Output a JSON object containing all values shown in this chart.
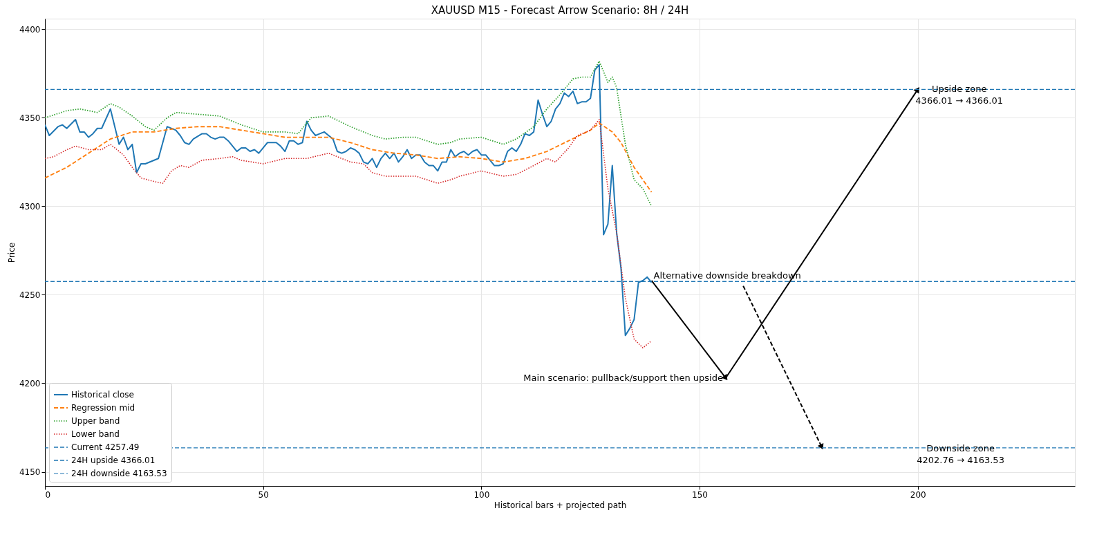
{
  "chart_data": {
    "type": "line",
    "title": "XAUUSD M15 - Forecast Arrow Scenario: 8H / 24H",
    "xlabel": "Historical bars + projected path",
    "ylabel": "Price",
    "xlim": [
      0,
      236
    ],
    "ylim": [
      4142,
      4406
    ],
    "xticks": [
      0,
      50,
      100,
      150,
      200
    ],
    "yticks": [
      4150,
      4200,
      4250,
      4300,
      4350,
      4400
    ],
    "grid": true,
    "legend": "bottom left",
    "series": [
      {
        "name": "Historical close",
        "color": "#1f77b4",
        "line_style": "solid",
        "x": [
          0,
          1,
          3,
          4,
          5,
          7,
          8,
          9,
          10,
          11,
          12,
          13,
          15,
          17,
          18,
          19,
          20,
          21,
          22,
          23,
          26,
          28,
          30,
          31,
          32,
          33,
          34,
          36,
          37,
          38,
          39,
          40,
          41,
          42,
          43,
          44,
          45,
          46,
          47,
          48,
          49,
          50,
          51,
          52,
          53,
          54,
          55,
          56,
          57,
          58,
          59,
          60,
          61,
          62,
          63,
          64,
          65,
          66,
          67,
          68,
          69,
          70,
          71,
          72,
          73,
          74,
          75,
          76,
          77,
          78,
          79,
          80,
          81,
          82,
          83,
          84,
          85,
          86,
          87,
          88,
          89,
          90,
          91,
          92,
          93,
          94,
          95,
          96,
          97,
          98,
          99,
          100,
          101,
          102,
          103,
          104,
          105,
          106,
          107,
          108,
          109,
          110,
          111,
          112,
          113,
          114,
          115,
          116,
          117,
          118,
          119,
          120,
          121,
          122,
          123,
          124,
          125,
          126,
          127,
          128,
          129,
          130,
          131,
          132,
          133,
          134,
          135,
          136,
          137,
          138,
          139
        ],
        "values": [
          4346,
          4340,
          4345,
          4346,
          4344,
          4349,
          4342,
          4342,
          4339,
          4341,
          4344,
          4344,
          4355,
          4335,
          4339,
          4332,
          4335,
          4319,
          4324,
          4324,
          4327,
          4345,
          4343,
          4340,
          4336,
          4335,
          4338,
          4341,
          4341,
          4339,
          4338,
          4339,
          4339,
          4337,
          4334,
          4331,
          4333,
          4333,
          4331,
          4332,
          4330,
          4333,
          4336,
          4336,
          4336,
          4334,
          4331,
          4337,
          4337,
          4335,
          4336,
          4348,
          4343,
          4340,
          4341,
          4342,
          4340,
          4338,
          4331,
          4330,
          4331,
          4333,
          4332,
          4330,
          4325,
          4324,
          4327,
          4322,
          4327,
          4330,
          4327,
          4330,
          4325,
          4328,
          4332,
          4327,
          4329,
          4329,
          4325,
          4323,
          4323,
          4320,
          4325,
          4325,
          4332,
          4328,
          4330,
          4331,
          4329,
          4331,
          4332,
          4329,
          4329,
          4326,
          4323,
          4323,
          4324,
          4331,
          4333,
          4331,
          4335,
          4341,
          4340,
          4342,
          4360,
          4352,
          4345,
          4348,
          4355,
          4358,
          4364,
          4362,
          4365,
          4358,
          4359,
          4359,
          4361,
          4377,
          4380,
          4284,
          4290,
          4323,
          4285,
          4265,
          4227,
          4231,
          4236,
          4257,
          4258,
          4260,
          4257
        ]
      },
      {
        "name": "Regression mid",
        "color": "#ff7f0e",
        "line_style": "dashed",
        "x": [
          0,
          5,
          10,
          15,
          20,
          25,
          30,
          35,
          40,
          45,
          50,
          55,
          60,
          65,
          70,
          75,
          80,
          85,
          90,
          95,
          100,
          105,
          110,
          115,
          120,
          125,
          127,
          130,
          132,
          135,
          139
        ],
        "values": [
          4316,
          4322,
          4330,
          4338,
          4342,
          4342,
          4344,
          4345,
          4345,
          4343,
          4341,
          4339,
          4339,
          4339,
          4336,
          4332,
          4330,
          4329,
          4327,
          4328,
          4327,
          4325,
          4327,
          4331,
          4337,
          4343,
          4347,
          4342,
          4336,
          4322,
          4308
        ]
      },
      {
        "name": "Upper band",
        "color": "#2ca02c",
        "line_style": "dotted",
        "x": [
          0,
          5,
          8,
          12,
          15,
          17,
          20,
          23,
          25,
          28,
          30,
          35,
          40,
          45,
          50,
          55,
          58,
          61,
          65,
          70,
          75,
          78,
          82,
          85,
          90,
          93,
          95,
          100,
          105,
          108,
          112,
          115,
          118,
          121,
          123,
          125,
          127,
          129,
          130,
          131,
          133,
          135,
          137,
          139
        ],
        "values": [
          4350,
          4354,
          4355,
          4353,
          4358,
          4356,
          4351,
          4345,
          4343,
          4350,
          4353,
          4352,
          4351,
          4346,
          4342,
          4342,
          4341,
          4350,
          4351,
          4345,
          4340,
          4338,
          4339,
          4339,
          4335,
          4336,
          4338,
          4339,
          4335,
          4338,
          4345,
          4355,
          4363,
          4372,
          4373,
          4373,
          4382,
          4370,
          4373,
          4367,
          4335,
          4315,
          4310,
          4300
        ]
      },
      {
        "name": "Lower band",
        "color": "#d62728",
        "line_style": "dotted",
        "x": [
          0,
          2,
          5,
          7,
          10,
          13,
          15,
          18,
          20,
          22,
          25,
          27,
          29,
          31,
          33,
          36,
          40,
          43,
          45,
          50,
          55,
          60,
          65,
          70,
          73,
          75,
          78,
          82,
          85,
          90,
          93,
          95,
          100,
          105,
          108,
          112,
          115,
          117,
          120,
          122,
          125,
          127,
          129,
          131,
          133,
          135,
          137,
          139
        ],
        "values": [
          4327,
          4328,
          4332,
          4334,
          4332,
          4332,
          4335,
          4329,
          4322,
          4316,
          4314,
          4313,
          4320,
          4323,
          4322,
          4326,
          4327,
          4328,
          4326,
          4324,
          4327,
          4327,
          4330,
          4325,
          4324,
          4319,
          4317,
          4317,
          4317,
          4313,
          4315,
          4317,
          4320,
          4317,
          4318,
          4323,
          4327,
          4325,
          4333,
          4340,
          4343,
          4349,
          4310,
          4285,
          4248,
          4225,
          4220,
          4224
        ]
      },
      {
        "color": "#000000",
        "line_style": "solid",
        "marker": "triangle",
        "x": [
          139,
          156
        ],
        "values": [
          4258,
          4203
        ]
      },
      {
        "color": "#000000",
        "line_style": "solid",
        "marker": "triangle",
        "x": [
          156,
          200
        ],
        "values": [
          4203,
          4366
        ]
      },
      {
        "color": "#000000",
        "line_style": "dashed",
        "marker": "triangle",
        "x": [
          160,
          178
        ],
        "values": [
          4255,
          4164
        ]
      }
    ],
    "ref_lines": [
      {
        "axis": "y",
        "value": 4257.49,
        "label": "Current 4257.49",
        "color": "#1f77b4",
        "line_style": "dashed"
      },
      {
        "axis": "y",
        "value": 4366.01,
        "label": "24H upside 4366.01",
        "color": "#1f77b4",
        "line_style": "dashed"
      },
      {
        "axis": "y",
        "value": 4163.53,
        "label": "24H downside 4163.53",
        "color": "#1f77b4",
        "line_style": "dashed"
      }
    ],
    "annotations": [
      {
        "text": "Upside zone\n4366.01 → 4366.01",
        "x": 209.5,
        "y": 4366
      },
      {
        "text": "Downside zone\n4202.76 → 4163.53",
        "x": 209.8,
        "y": 4163
      },
      {
        "text": "Alternative downside breakdown",
        "x": 139,
        "y": 4258
      },
      {
        "text": "Main scenario: pullback/support then upside",
        "x": 156,
        "y": 4203
      }
    ]
  }
}
